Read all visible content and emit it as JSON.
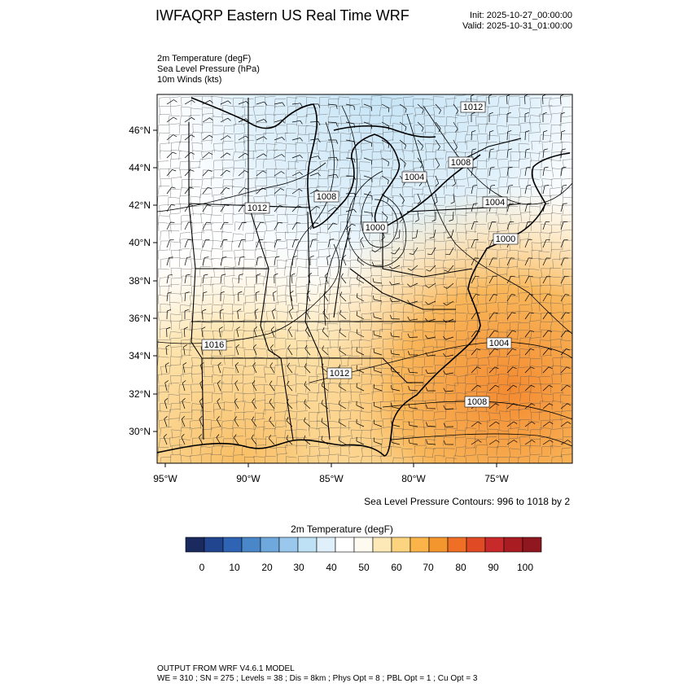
{
  "header": {
    "title": "IWFAQRP Eastern US Real Time WRF",
    "init": "Init: 2025-10-27_00:00:00",
    "valid": "Valid: 2025-10-31_01:00:00"
  },
  "fields": [
    "2m Temperature   (degF)",
    "Sea Level Pressure   (hPa)",
    "10m Winds   (kts)"
  ],
  "lat_labels": [
    "46°N",
    "44°N",
    "42°N",
    "40°N",
    "38°N",
    "36°N",
    "34°N",
    "32°N",
    "30°N"
  ],
  "lon_labels": [
    "95°W",
    "90°W",
    "85°W",
    "80°W",
    "75°W"
  ],
  "pressure_labels": [
    "1012",
    "1008",
    "1004",
    "1008",
    "1012",
    "1000",
    "1004",
    "1000",
    "1016",
    "1012",
    "1004",
    "1008"
  ],
  "contour_note": "Sea Level Pressure Contours: 996 to 1018 by 2",
  "colorbar": {
    "title": "2m Temperature  (degF)",
    "ticks": [
      "0",
      "10",
      "20",
      "30",
      "40",
      "50",
      "60",
      "70",
      "80",
      "90",
      "100"
    ],
    "colors": [
      "#1b2a5e",
      "#22458f",
      "#2f63b3",
      "#4a87c8",
      "#6fa8dc",
      "#99c8ec",
      "#bfe1f5",
      "#dff0fa",
      "#ffffff",
      "#fffaf0",
      "#fde9b8",
      "#fcd37e",
      "#fbb44a",
      "#f4962e",
      "#ee6f25",
      "#e04a24",
      "#c8292a",
      "#a81c22",
      "#8f1820"
    ]
  },
  "footer": {
    "line1": "OUTPUT FROM WRF V4.6.1 MODEL",
    "line2": "WE = 310 ; SN = 275 ; Levels = 38 ; Dis = 8km ; Phys Opt = 8 ; PBL Opt = 1 ; Cu Opt = 3"
  }
}
